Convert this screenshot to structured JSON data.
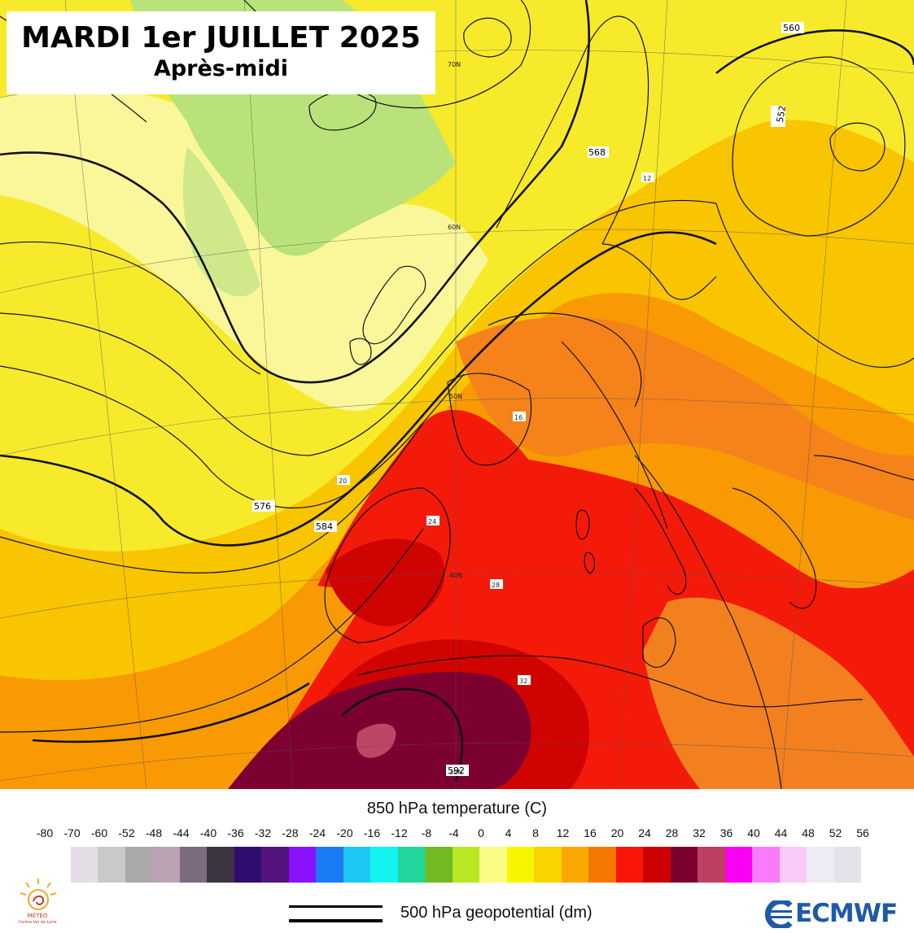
{
  "title": {
    "main": "MARDI 1er JUILLET 2025",
    "sub": "Après-midi"
  },
  "map": {
    "field": "850 hPa temperature (C)",
    "contours": "500 hPa geopotential (dm)",
    "contour_labels": [
      "560",
      "552",
      "568",
      "576",
      "584",
      "592"
    ],
    "latitude_labels": [
      "70N",
      "60N",
      "50N",
      "40N",
      "30N"
    ],
    "temperature_labels": [
      "12",
      "16",
      "20",
      "24",
      "28",
      "32"
    ]
  },
  "legend": {
    "title": "850 hPa temperature (C)",
    "ticks": [
      "-80",
      "-70",
      "-60",
      "-52",
      "-48",
      "-44",
      "-40",
      "-36",
      "-32",
      "-28",
      "-24",
      "-20",
      "-16",
      "-12",
      "-8",
      "-4",
      "0",
      "4",
      "8",
      "12",
      "16",
      "20",
      "24",
      "28",
      "32",
      "36",
      "40",
      "44",
      "48",
      "52",
      "56"
    ],
    "colors": [
      "#e5dde5",
      "#c9c9c9",
      "#a9a9a9",
      "#b9a3b3",
      "#7d6b80",
      "#3d3442",
      "#2f0d6d",
      "#54137f",
      "#8a11fb",
      "#1a7cf5",
      "#1bc7f5",
      "#13f4f0",
      "#20d69a",
      "#71ba23",
      "#b9e823",
      "#fafb84",
      "#f7f600",
      "#f9d400",
      "#f9a800",
      "#f57700",
      "#f91608",
      "#cc0300",
      "#7c002f",
      "#bc4060",
      "#f902f3",
      "#f97bf7",
      "#f9c9f9",
      "#ececf4",
      "#e6e2ea"
    ],
    "geopotential_label": "500 hPa geopotential (dm)"
  },
  "branding": {
    "ecmwf": "ECMWF",
    "meteo_name": "MÉTÉO",
    "meteo_region": "Centre-Val de Loire"
  },
  "icons": [
    "ecmwf-logo-mark",
    "meteo-sun-logo"
  ]
}
